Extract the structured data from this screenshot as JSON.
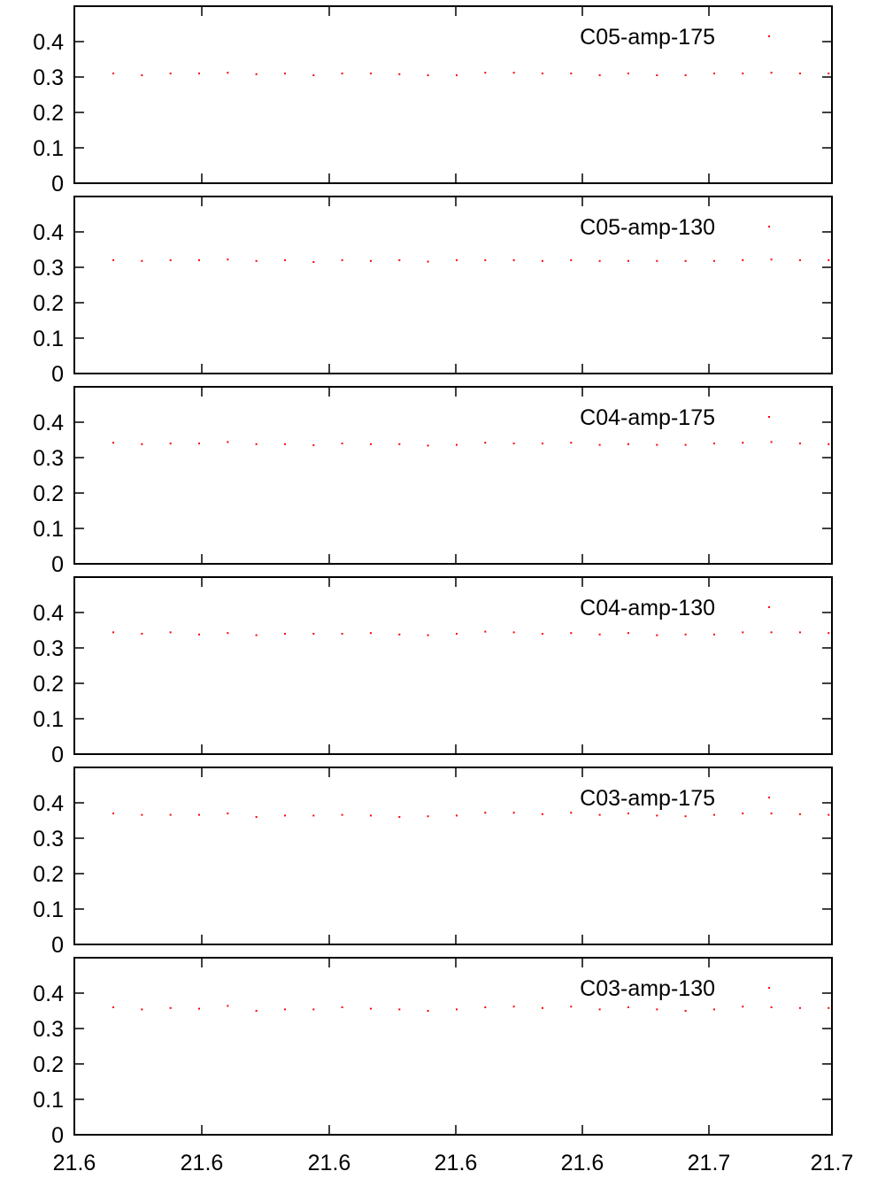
{
  "chart_data": [
    {
      "type": "scatter",
      "series": [
        {
          "name": "C05-amp-175",
          "color": "#ff0000",
          "values": [
            0.31,
            0.305,
            0.31,
            0.31,
            0.312,
            0.308,
            0.31,
            0.305,
            0.31,
            0.31,
            0.308,
            0.305,
            0.305,
            0.312,
            0.312,
            0.31,
            0.31,
            0.305,
            0.31,
            0.305,
            0.305,
            0.31,
            0.31,
            0.312,
            0.31,
            0.31
          ]
        }
      ],
      "ylim": [
        0,
        0.5
      ],
      "yticks": [
        "0",
        "0.1",
        "0.2",
        "0.3",
        "0.4"
      ]
    },
    {
      "type": "scatter",
      "series": [
        {
          "name": "C05-amp-130",
          "color": "#ff0000",
          "values": [
            0.32,
            0.318,
            0.32,
            0.32,
            0.322,
            0.318,
            0.32,
            0.315,
            0.32,
            0.318,
            0.32,
            0.316,
            0.32,
            0.32,
            0.32,
            0.318,
            0.32,
            0.318,
            0.318,
            0.318,
            0.318,
            0.318,
            0.32,
            0.322,
            0.32,
            0.32
          ]
        }
      ],
      "ylim": [
        0,
        0.5
      ],
      "yticks": [
        "0",
        "0.1",
        "0.2",
        "0.3",
        "0.4"
      ]
    },
    {
      "type": "scatter",
      "series": [
        {
          "name": "C04-amp-175",
          "color": "#ff0000",
          "values": [
            0.342,
            0.338,
            0.34,
            0.34,
            0.344,
            0.338,
            0.338,
            0.335,
            0.34,
            0.338,
            0.338,
            0.334,
            0.336,
            0.342,
            0.34,
            0.34,
            0.342,
            0.336,
            0.338,
            0.336,
            0.336,
            0.34,
            0.342,
            0.344,
            0.34,
            0.338
          ]
        }
      ],
      "ylim": [
        0,
        0.5
      ],
      "yticks": [
        "0",
        "0.1",
        "0.2",
        "0.3",
        "0.4"
      ]
    },
    {
      "type": "scatter",
      "series": [
        {
          "name": "C04-amp-130",
          "color": "#ff0000",
          "values": [
            0.344,
            0.34,
            0.344,
            0.338,
            0.342,
            0.336,
            0.34,
            0.34,
            0.34,
            0.342,
            0.338,
            0.336,
            0.34,
            0.346,
            0.344,
            0.34,
            0.342,
            0.338,
            0.342,
            0.336,
            0.338,
            0.338,
            0.344,
            0.344,
            0.344,
            0.342
          ]
        }
      ],
      "ylim": [
        0,
        0.5
      ],
      "yticks": [
        "0",
        "0.1",
        "0.2",
        "0.3",
        "0.4"
      ]
    },
    {
      "type": "scatter",
      "series": [
        {
          "name": "C03-amp-175",
          "color": "#ff0000",
          "values": [
            0.37,
            0.366,
            0.366,
            0.366,
            0.37,
            0.36,
            0.364,
            0.364,
            0.366,
            0.364,
            0.36,
            0.362,
            0.364,
            0.372,
            0.372,
            0.368,
            0.372,
            0.366,
            0.37,
            0.364,
            0.362,
            0.366,
            0.37,
            0.37,
            0.368,
            0.366
          ]
        }
      ],
      "ylim": [
        0,
        0.5
      ],
      "yticks": [
        "0",
        "0.1",
        "0.2",
        "0.3",
        "0.4"
      ]
    },
    {
      "type": "scatter",
      "series": [
        {
          "name": "C03-amp-130",
          "color": "#ff0000",
          "values": [
            0.36,
            0.354,
            0.358,
            0.356,
            0.364,
            0.35,
            0.354,
            0.354,
            0.36,
            0.356,
            0.354,
            0.35,
            0.354,
            0.36,
            0.362,
            0.358,
            0.362,
            0.354,
            0.36,
            0.354,
            0.35,
            0.354,
            0.362,
            0.36,
            0.358,
            0.358
          ]
        }
      ],
      "ylim": [
        0,
        0.5
      ],
      "yticks": [
        "0",
        "0.1",
        "0.2",
        "0.3",
        "0.4"
      ]
    }
  ],
  "x_axis": {
    "tick_labels": [
      "21.6",
      "21.6",
      "21.6",
      "21.6",
      "21.6",
      "21.7",
      "21.7"
    ]
  },
  "grid": false,
  "legend_position": "top-right"
}
